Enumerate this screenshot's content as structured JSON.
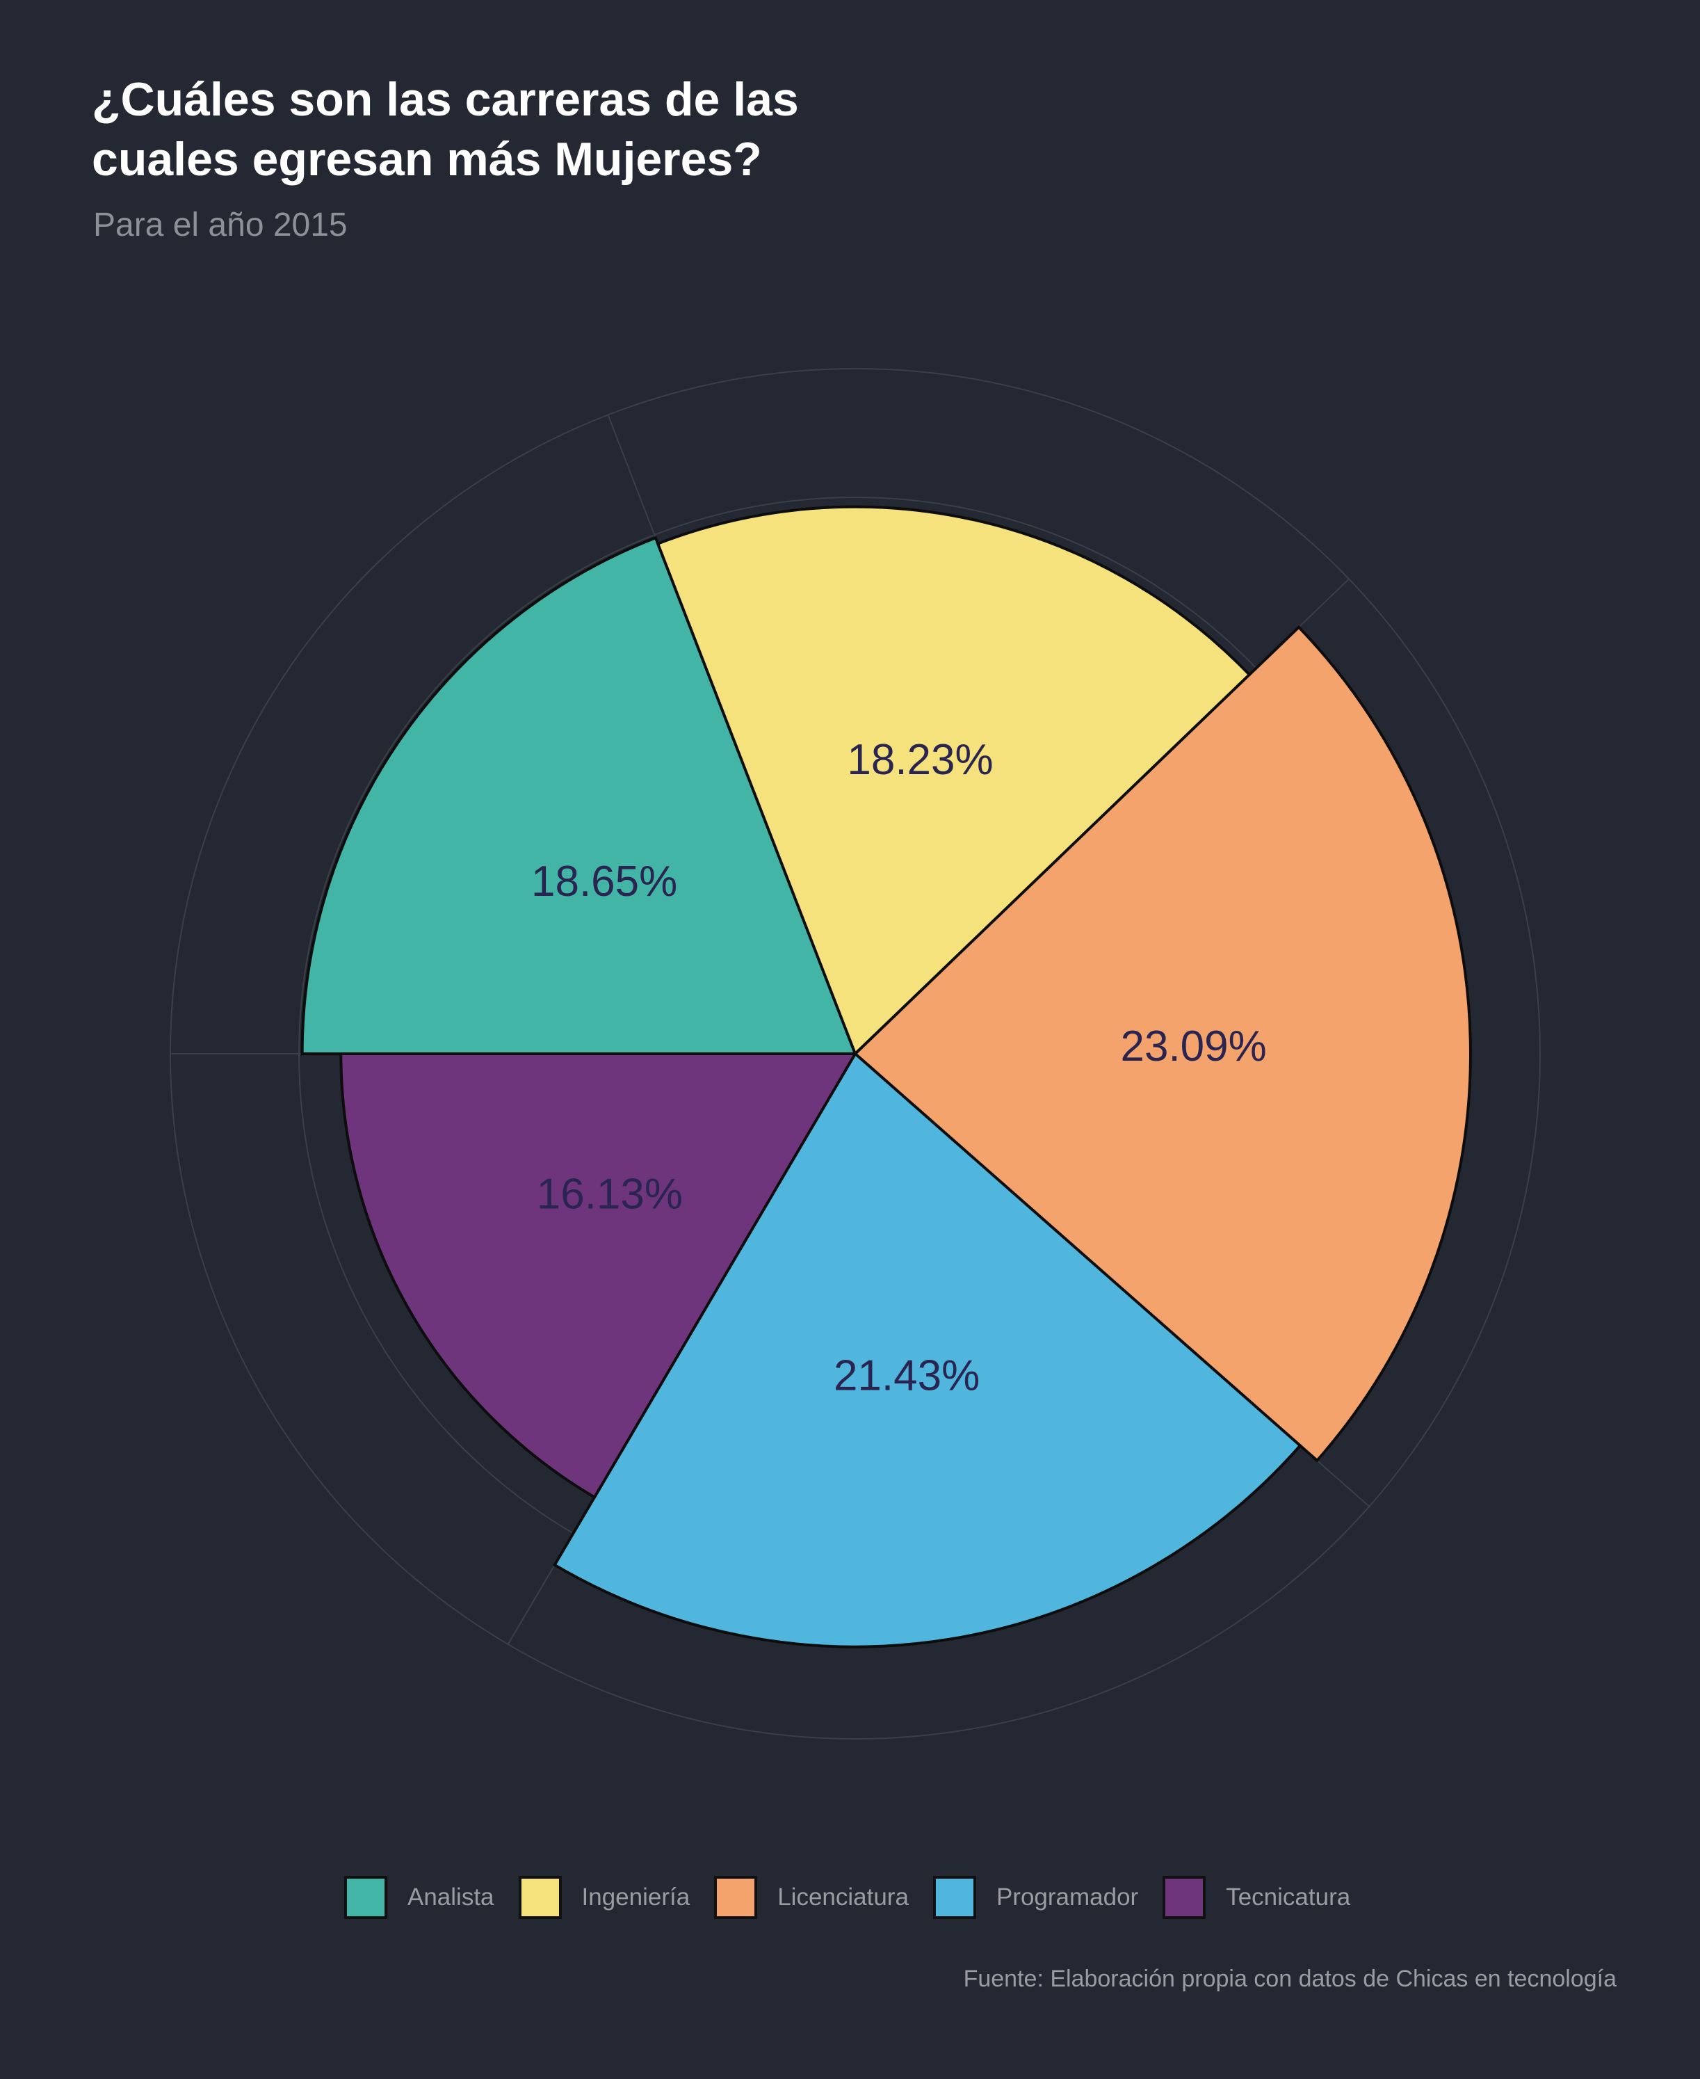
{
  "chart_data": {
    "type": "pie",
    "title": "¿Cuáles son las carreras de las\n cuales egresan más Mujeres?",
    "subtitle": "Para el año 2015",
    "caption": "Fuente: Elaboración propia con datos de Chicas en tecnología",
    "categories": [
      "Analista",
      "Ingeniería",
      "Licenciatura",
      "Programador",
      "Tecnicatura"
    ],
    "values": [
      18.65,
      18.23,
      23.09,
      21.43,
      16.13
    ],
    "labels": [
      "18.65%",
      "18.23%",
      "23.09%",
      "21.43%",
      "16.13%"
    ],
    "colors": [
      "#42b5a6",
      "#f5e27c",
      "#f4a36c",
      "#50b6de",
      "#6f357c"
    ],
    "legend_position": "bottom",
    "label_color": "#2a2550",
    "panel_grid": true
  }
}
